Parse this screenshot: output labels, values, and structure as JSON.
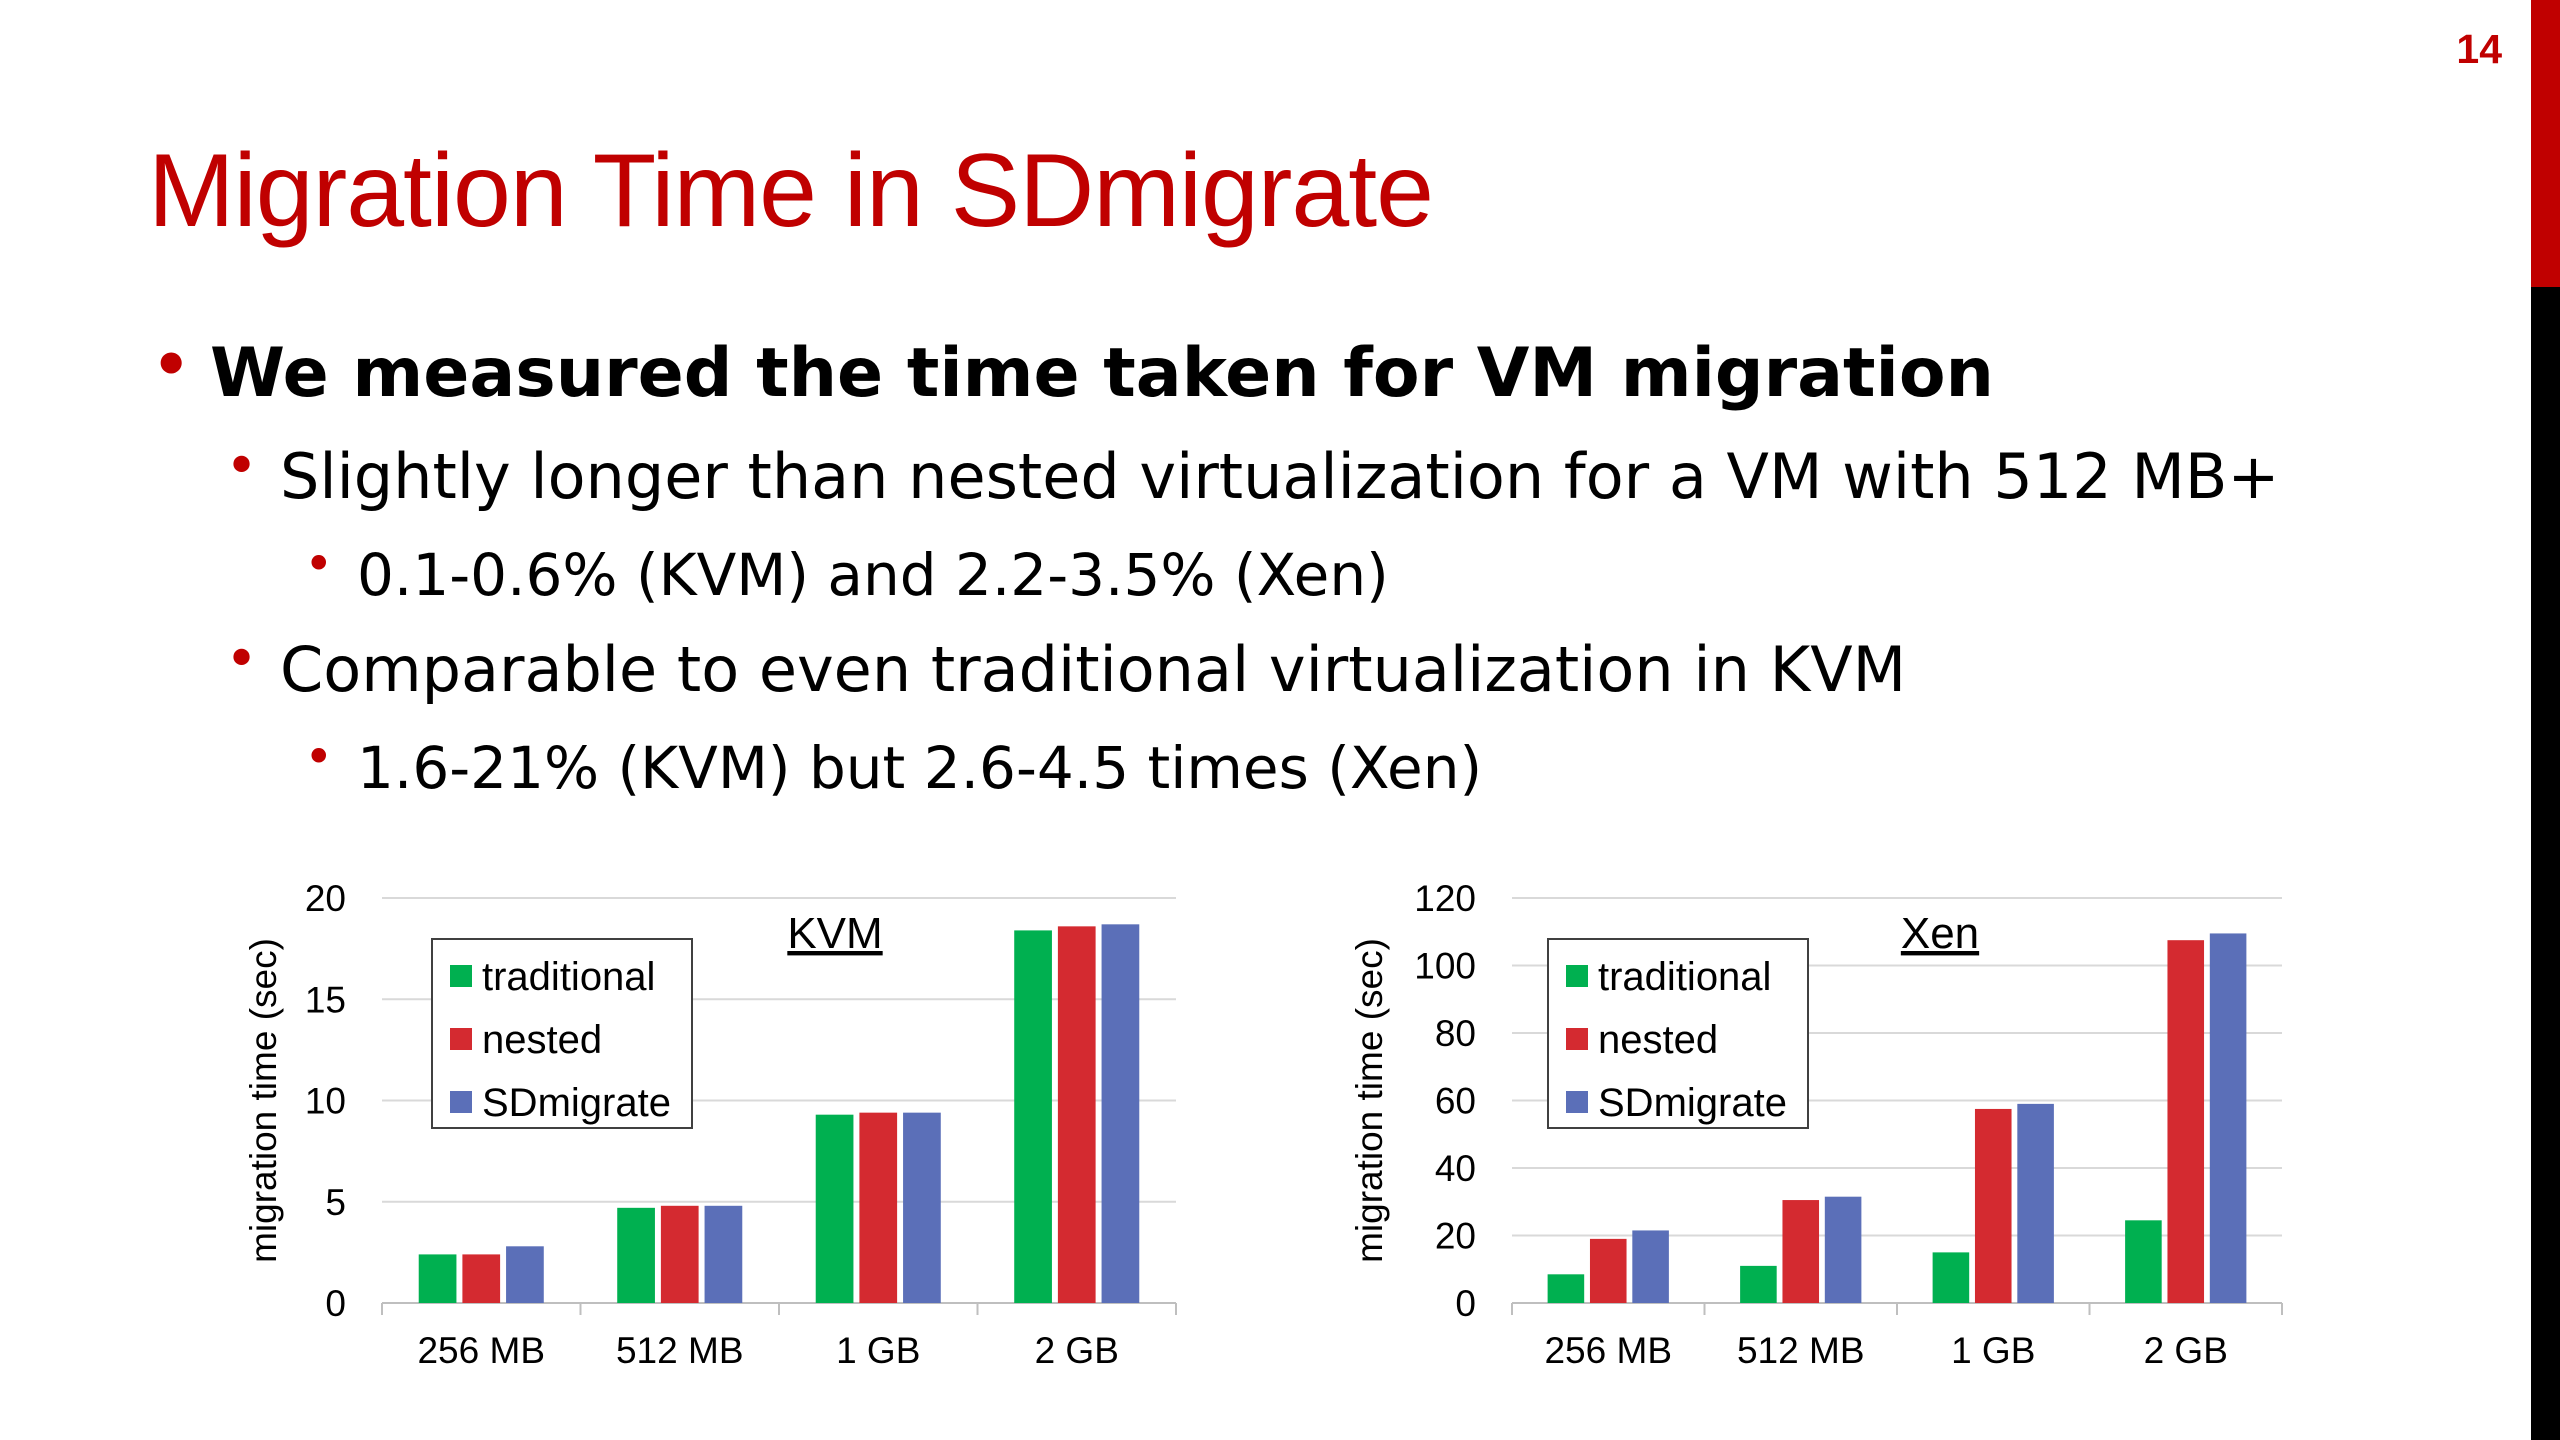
{
  "page_number": "14",
  "title": "Migration Time in SDmigrate",
  "bullets": {
    "b1": "We measured the time taken for VM migration",
    "b1_1": "Slightly longer than nested virtualization for a VM with 512 MB+",
    "b1_1_1": "0.1-0.6% (KVM) and 2.2-3.5% (Xen)",
    "b1_2": "Comparable to even traditional virtualization in KVM",
    "b1_2_1": "1.6-21% (KVM) but 2.6-4.5 times (Xen)"
  },
  "colors": {
    "accent": "#c00000",
    "traditional": "#00b050",
    "nested": "#d42a30",
    "SDmigrate": "#5b6fb8"
  },
  "chart_data": [
    {
      "type": "bar",
      "title": "KVM",
      "xlabel": "",
      "ylabel": "migration time (sec)",
      "categories": [
        "256 MB",
        "512 MB",
        "1 GB",
        "2 GB"
      ],
      "ylim": [
        0,
        20
      ],
      "yticks": [
        0,
        5,
        10,
        15,
        20
      ],
      "grid": true,
      "legend_position": "top-left",
      "series": [
        {
          "name": "traditional",
          "values": [
            2.4,
            4.7,
            9.3,
            18.4
          ]
        },
        {
          "name": "nested",
          "values": [
            2.4,
            4.8,
            9.4,
            18.6
          ]
        },
        {
          "name": "SDmigrate",
          "values": [
            2.8,
            4.8,
            9.4,
            18.7
          ]
        }
      ]
    },
    {
      "type": "bar",
      "title": "Xen",
      "xlabel": "",
      "ylabel": "migration time (sec)",
      "categories": [
        "256 MB",
        "512 MB",
        "1 GB",
        "2 GB"
      ],
      "ylim": [
        0,
        120
      ],
      "yticks": [
        0,
        20,
        40,
        60,
        80,
        100,
        120
      ],
      "grid": true,
      "legend_position": "top-left",
      "series": [
        {
          "name": "traditional",
          "values": [
            8.5,
            11,
            15,
            24.5
          ]
        },
        {
          "name": "nested",
          "values": [
            19,
            30.5,
            57.5,
            107.5
          ]
        },
        {
          "name": "SDmigrate",
          "values": [
            21.5,
            31.5,
            59,
            109.5
          ]
        }
      ]
    }
  ]
}
